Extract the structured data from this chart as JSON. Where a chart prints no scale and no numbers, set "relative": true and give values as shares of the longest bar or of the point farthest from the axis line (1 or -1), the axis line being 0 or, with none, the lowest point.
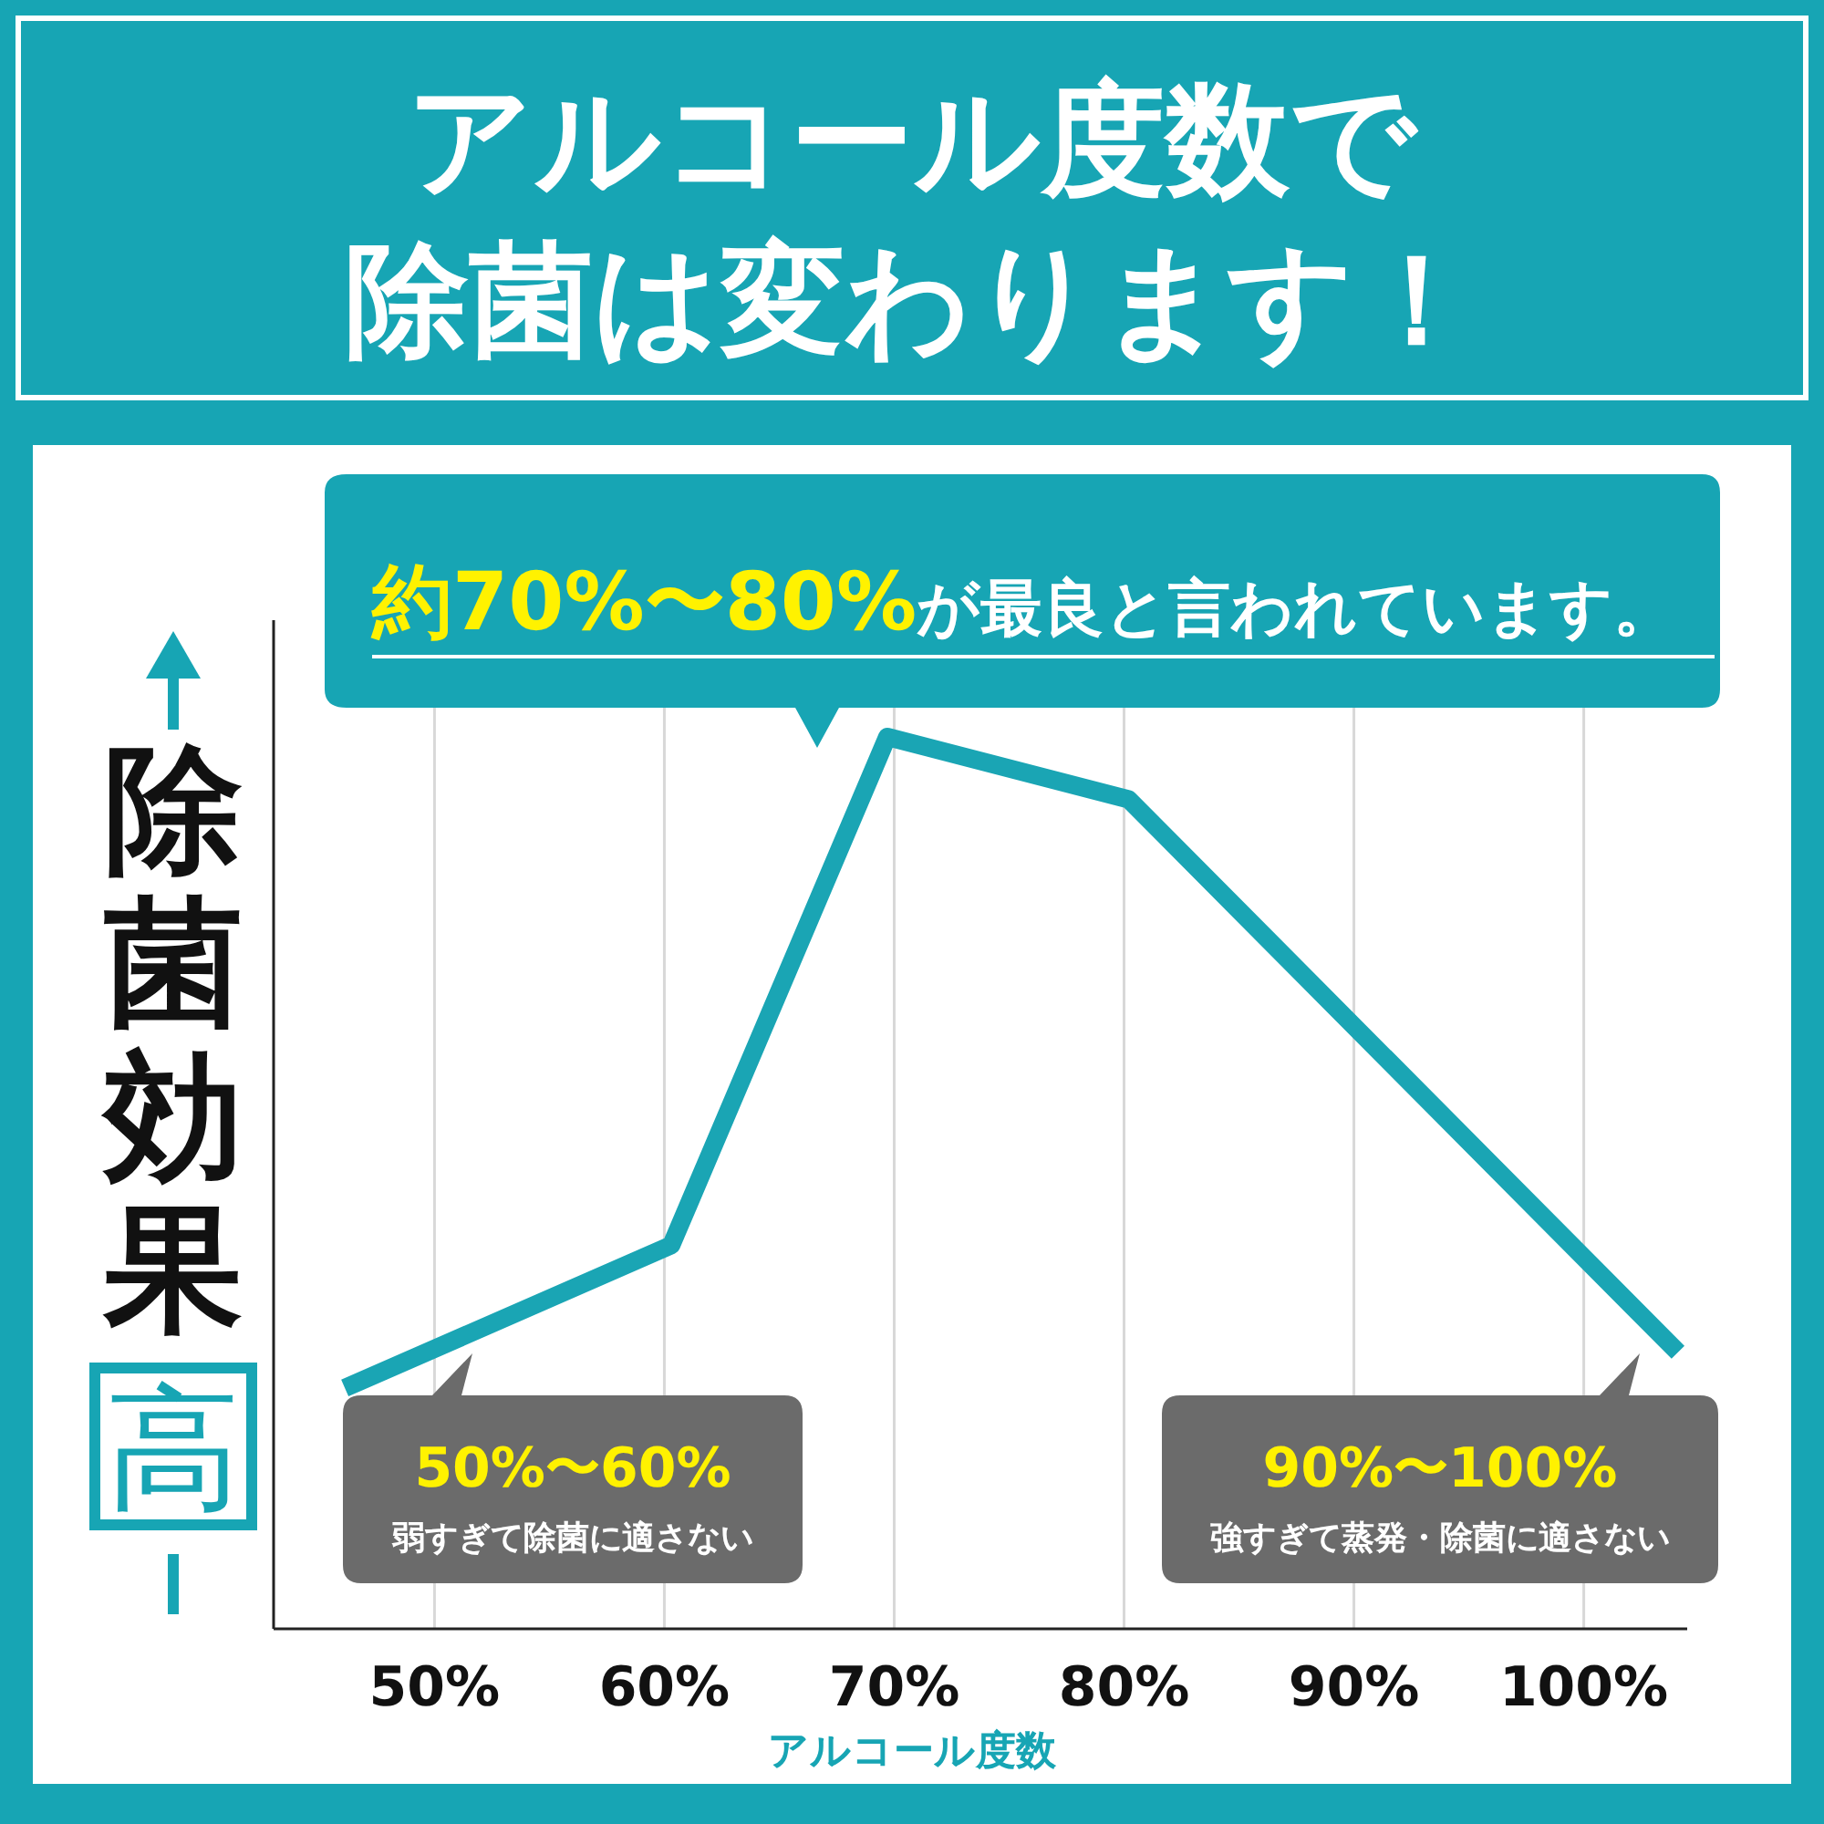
{
  "chart_data": {
    "type": "line",
    "title": "アルコール度数で除菌は変わります！",
    "xlabel": "アルコール度数",
    "ylabel": "除菌効果",
    "x": [
      46.1,
      60.3,
      69.7,
      80.2,
      104.1
    ],
    "series": [
      {
        "color": "#1aa5b4",
        "values": [
          0.27,
          0.43,
          1,
          0.93,
          0.31
        ]
      }
    ],
    "relative": true,
    "xlim": [
      43,
      104.5
    ],
    "xticks": [
      {
        "value": 50,
        "label": "50%"
      },
      {
        "value": 60,
        "label": "60%"
      },
      {
        "value": 70,
        "label": "70%"
      },
      {
        "value": 80,
        "label": "80%"
      },
      {
        "value": 90,
        "label": "90%"
      },
      {
        "value": 100,
        "label": "100%"
      }
    ],
    "grid": "x",
    "marker": "none",
    "line_style": "solid",
    "annotations": [
      "高",
      "約70%〜80%",
      "が最良と言われています。",
      "50%〜60%",
      "弱すぎて除菌に適さない",
      "90%〜100%",
      "強すぎて蒸発・除菌に適さない"
    ]
  }
}
